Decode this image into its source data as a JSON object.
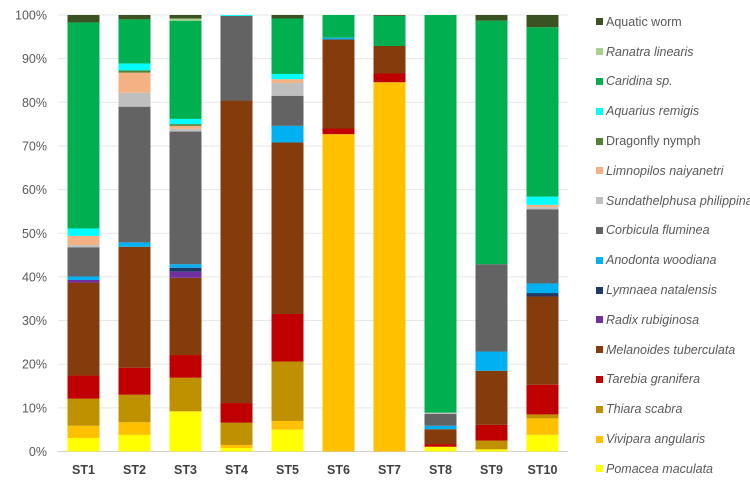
{
  "chart_data": {
    "type": "bar",
    "stacked": "percent",
    "title": "",
    "xlabel": "",
    "ylabel": "",
    "ylim": [
      0,
      100
    ],
    "yticks": [
      "0%",
      "10%",
      "20%",
      "30%",
      "40%",
      "50%",
      "60%",
      "70%",
      "80%",
      "90%",
      "100%"
    ],
    "grid": true,
    "legend_position": "right",
    "categories": [
      "ST1",
      "ST2",
      "ST3",
      "ST4",
      "ST5",
      "ST6",
      "ST7",
      "ST8",
      "ST9",
      "ST10"
    ],
    "series": [
      {
        "name": "Pomacea   maculata",
        "italic": true,
        "color": "#ffff00",
        "values": [
          3.1,
          3.8,
          9.2,
          0.8,
          5.0,
          0,
          0,
          1.1,
          0.5,
          3.8
        ]
      },
      {
        "name": "Vivipara angularis",
        "italic": true,
        "color": "#ffc000",
        "values": [
          2.8,
          2.9,
          0,
          0.7,
          2.0,
          72.7,
          84.6,
          0,
          0,
          3.8
        ]
      },
      {
        "name": "Thiara scabra",
        "italic": true,
        "color": "#bf9000",
        "values": [
          6.2,
          6.3,
          7.7,
          5.1,
          13.6,
          0,
          0,
          0,
          2.0,
          0.9
        ]
      },
      {
        "name": "Tarebia granifera",
        "italic": true,
        "color": "#c00000",
        "values": [
          5.3,
          6.2,
          5.2,
          4.5,
          10.9,
          1.3,
          2.0,
          0.6,
          3.6,
          6.8
        ]
      },
      {
        "name": "Melanoides tuberculata",
        "italic": true,
        "color": "#843c0c",
        "values": [
          21.3,
          27.7,
          17.7,
          69.3,
          39.3,
          20.4,
          6.3,
          3.4,
          12.4,
          20.2
        ]
      },
      {
        "name": "Radix rubiginosa",
        "italic": true,
        "color": "#7030a0",
        "values": [
          0.6,
          0,
          1.4,
          0,
          0,
          0,
          0,
          0,
          0,
          0
        ]
      },
      {
        "name": "Lymnaea natalensis",
        "italic": true,
        "color": "#203864",
        "values": [
          0,
          0,
          0.9,
          0,
          0,
          0,
          0,
          0,
          0,
          0.8
        ]
      },
      {
        "name": "Anodonta woodiana",
        "italic": true,
        "color": "#00b0f0",
        "values": [
          0.8,
          1.0,
          0.8,
          0,
          3.8,
          0.4,
          0,
          0.8,
          4.4,
          2.2
        ]
      },
      {
        "name": "Corbicula fluminea",
        "italic": true,
        "color": "#636363",
        "values": [
          6.7,
          31.1,
          30.4,
          19.4,
          6.9,
          0,
          0,
          2.7,
          20.0,
          17.0
        ]
      },
      {
        "name": "Sundathelphusa philippina",
        "italic": true,
        "color": "#bfbfbf",
        "values": [
          0.5,
          3.2,
          0.6,
          0,
          2.9,
          0,
          0,
          0.3,
          0,
          0.5
        ]
      },
      {
        "name": "Limnopilos naiyanetri",
        "italic": true,
        "color": "#f4b183",
        "values": [
          2.1,
          4.6,
          0.7,
          0,
          0.9,
          0,
          0,
          0,
          0,
          0.5
        ]
      },
      {
        "name": "Dragonfly nymph",
        "italic": false,
        "color": "#548235",
        "values": [
          0,
          0.5,
          0.4,
          0,
          0,
          0,
          0,
          0,
          0,
          0
        ]
      },
      {
        "name": "Aquarius remigis",
        "italic": true,
        "color": "#00ffff",
        "values": [
          1.7,
          1.6,
          1.2,
          0.2,
          1.2,
          0,
          0,
          0,
          0,
          1.9
        ]
      },
      {
        "name": "Caridina sp.",
        "italic": true,
        "color": "#00b050",
        "values": [
          47.2,
          10.1,
          22.5,
          0,
          12.7,
          5.2,
          6.9,
          91.1,
          55.8,
          38.8
        ]
      },
      {
        "name": "Ranatra linearis",
        "italic": true,
        "color": "#a9d18e",
        "values": [
          0,
          0,
          0.5,
          0,
          0,
          0,
          0,
          0,
          0,
          0
        ]
      },
      {
        "name": "Aquatic worm",
        "italic": false,
        "color": "#3b5323",
        "values": [
          1.7,
          1.0,
          0.8,
          0,
          0.8,
          0,
          0.2,
          0,
          1.3,
          2.8
        ]
      }
    ]
  }
}
